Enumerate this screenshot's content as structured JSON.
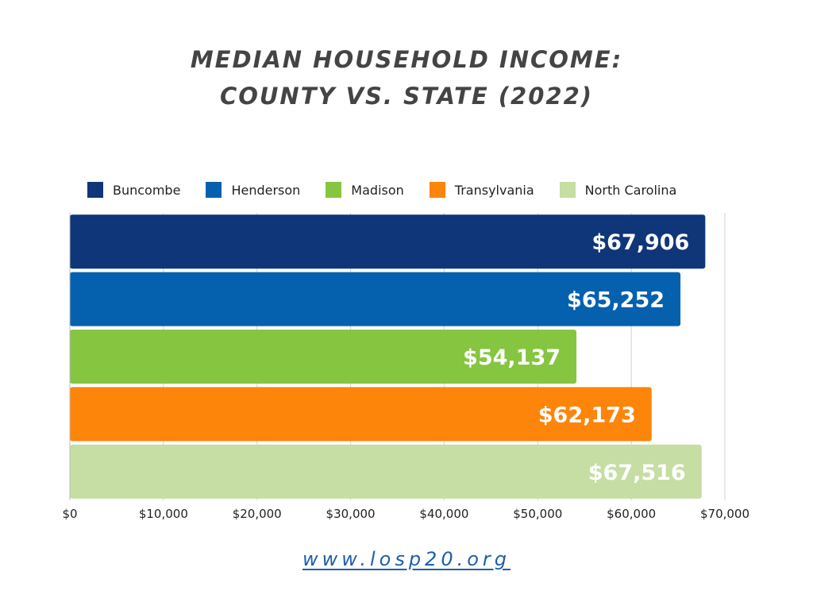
{
  "chart_data": {
    "type": "bar",
    "orientation": "horizontal",
    "title_lines": [
      "MEDIAN HOUSEHOLD INCOME:",
      "COUNTY VS. STATE (2022)"
    ],
    "categories": [
      "Buncombe",
      "Henderson",
      "Madison",
      "Transylvania",
      "North Carolina"
    ],
    "values": [
      67906,
      65252,
      54137,
      62173,
      67516
    ],
    "value_labels": [
      "$67,906",
      "$65,252",
      "$54,137",
      "$62,173",
      "$67,516"
    ],
    "colors": [
      "#0f3679",
      "#0561ae",
      "#86c540",
      "#fc850a",
      "#c6dda3"
    ],
    "xlim": [
      0,
      70000
    ],
    "x_ticks": [
      0,
      10000,
      20000,
      30000,
      40000,
      50000,
      60000,
      70000
    ],
    "x_tick_labels": [
      "$0",
      "$10,000",
      "$20,000",
      "$30,000",
      "$40,000",
      "$50,000",
      "$60,000",
      "$70,000"
    ],
    "grid": true,
    "legend_position": "top",
    "xlabel": "",
    "ylabel": ""
  },
  "footer": {
    "url": "www.losp20.org"
  }
}
